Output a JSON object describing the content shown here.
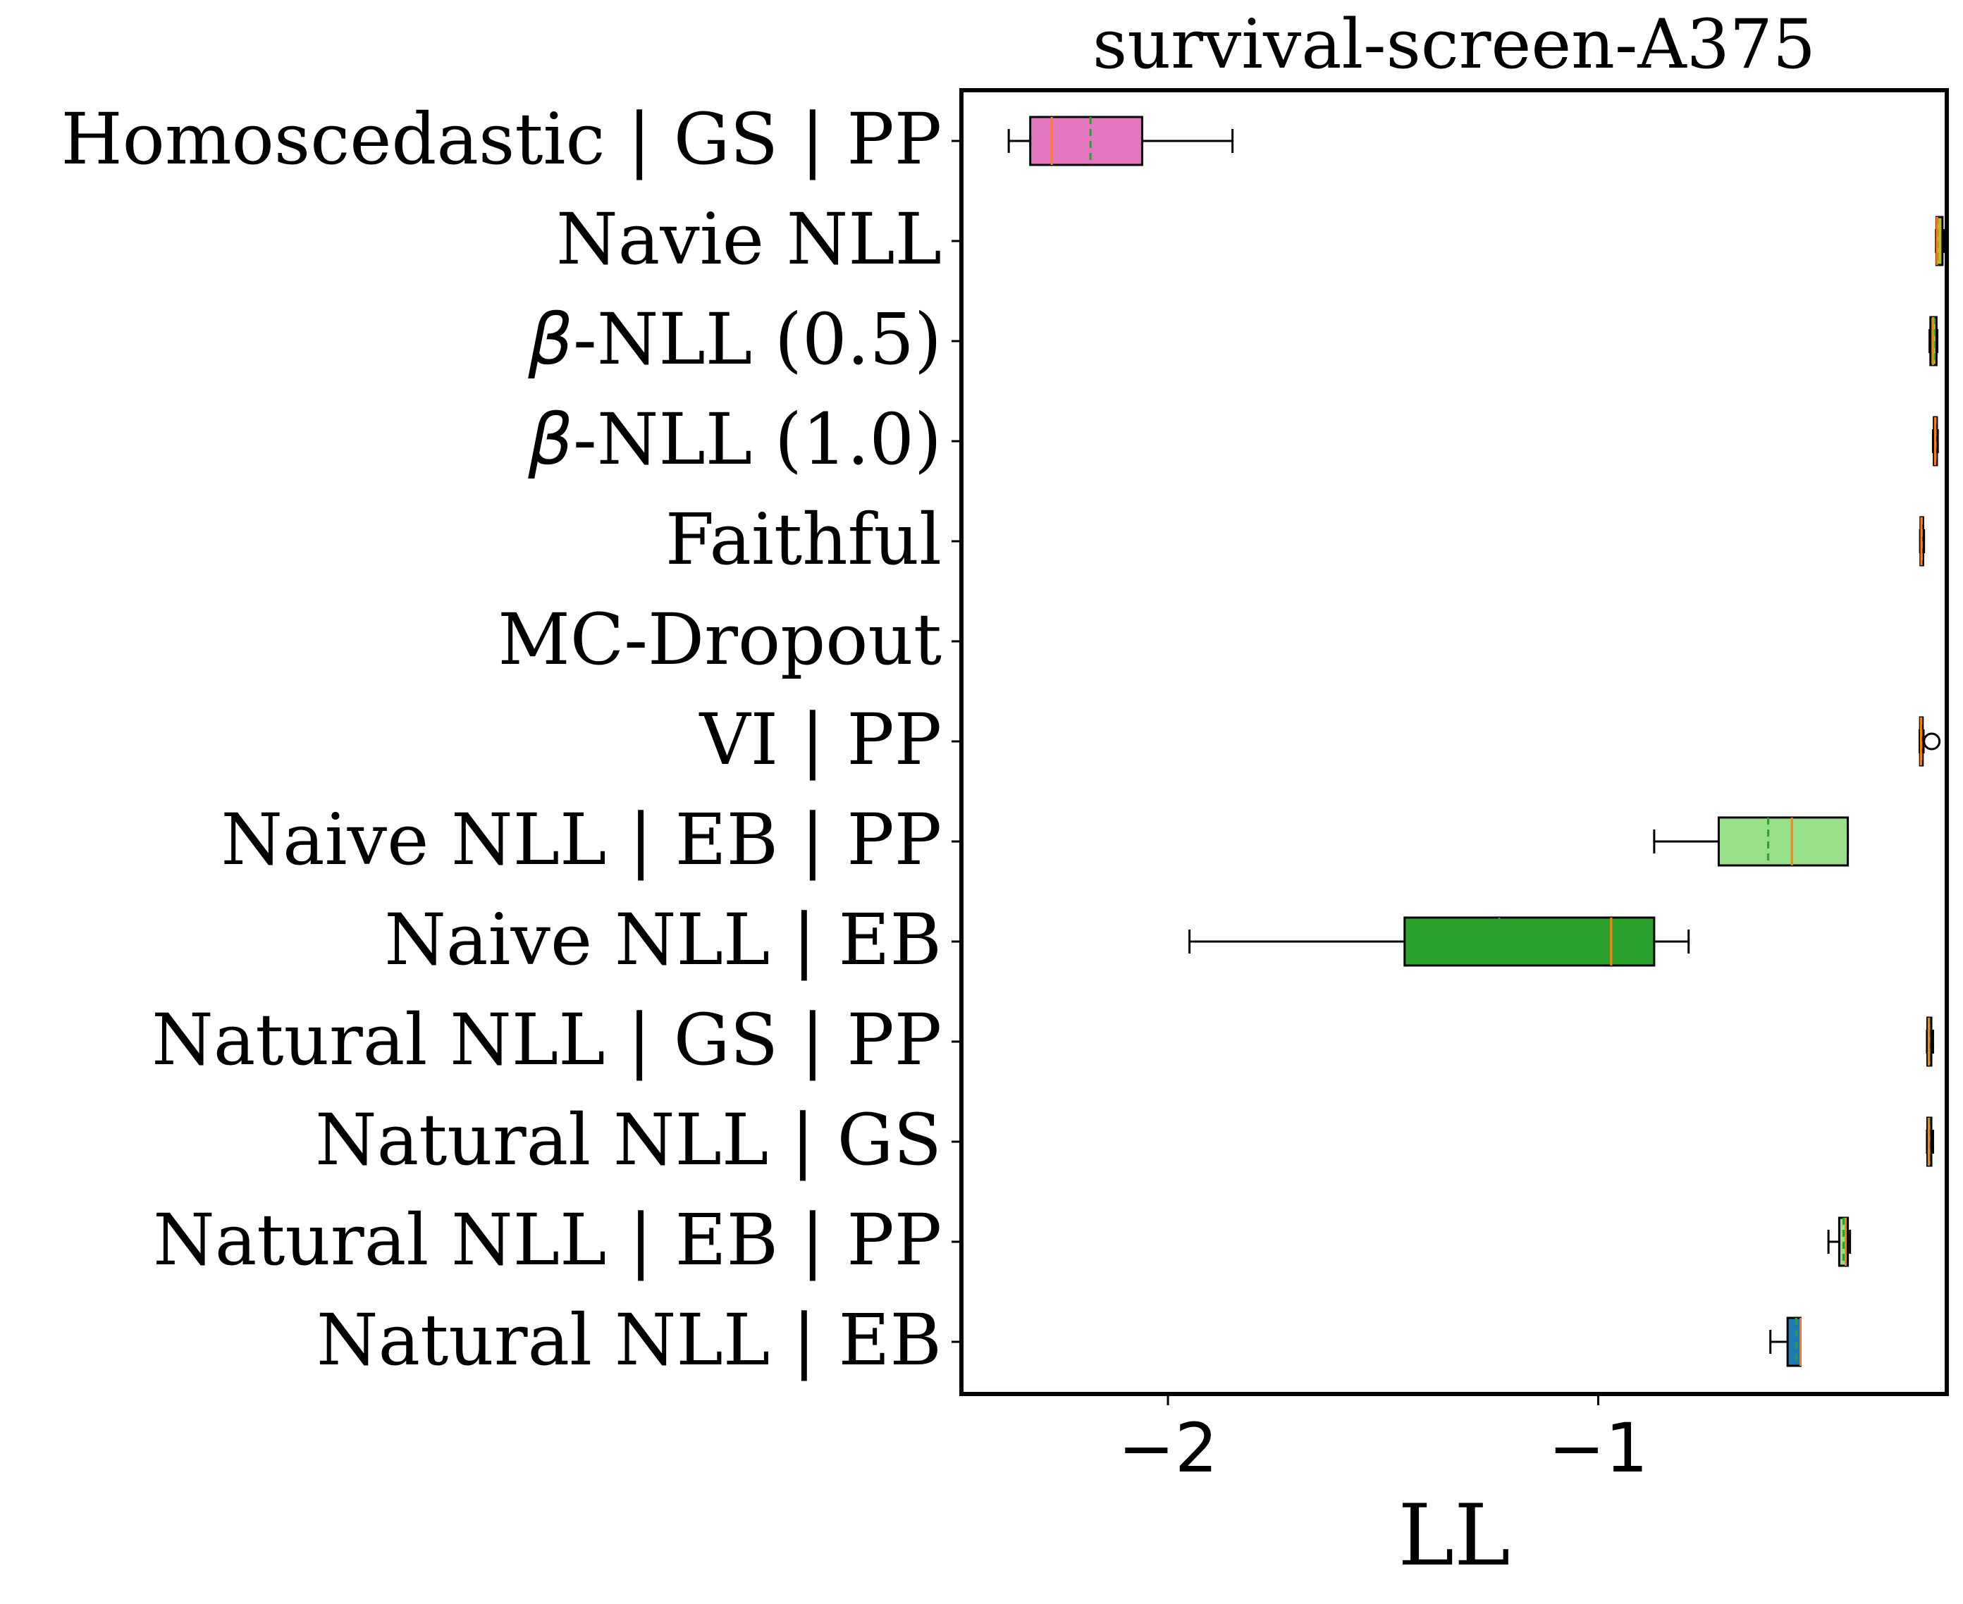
{
  "chart_data": {
    "type": "boxplot",
    "orientation": "horizontal",
    "title": "survival-screen-A375",
    "xlabel": "LL",
    "ylabel": "",
    "xlim": [
      -2.48,
      -0.19
    ],
    "x_ticks": [
      {
        "value": -2,
        "label": "−2"
      },
      {
        "value": -1,
        "label": "−1"
      }
    ],
    "categories": [
      {
        "prefix": "",
        "label": "Homoscedastic | GS | PP"
      },
      {
        "prefix": "",
        "label": "Navie NLL"
      },
      {
        "prefix": "β",
        "label": "-NLL (0.5)"
      },
      {
        "prefix": "β",
        "label": "-NLL (1.0)"
      },
      {
        "prefix": "",
        "label": "Faithful"
      },
      {
        "prefix": "",
        "label": "MC-Dropout"
      },
      {
        "prefix": "",
        "label": "VI | PP"
      },
      {
        "prefix": "",
        "label": "Naive NLL | EB | PP"
      },
      {
        "prefix": "",
        "label": "Naive NLL | EB "
      },
      {
        "prefix": "",
        "label": "Natural NLL | GS | PP"
      },
      {
        "prefix": "",
        "label": "Natural NLL | GS"
      },
      {
        "prefix": "",
        "label": "Natural NLL | EB | PP"
      },
      {
        "prefix": "",
        "label": "Natural NLL | EB "
      }
    ],
    "series": [
      {
        "whisker_low": -2.37,
        "q1": -2.32,
        "median": -2.27,
        "mean": -2.18,
        "q3": -2.06,
        "whisker_high": -1.85,
        "outliers": [],
        "color": "#e377c2"
      },
      {
        "whisker_low": -0.215,
        "q1": -0.214,
        "median": -0.213,
        "mean": -0.212,
        "q3": -0.2,
        "whisker_high": -0.197,
        "outliers": [],
        "color": "#bcbd22"
      },
      {
        "whisker_low": -0.23,
        "q1": -0.228,
        "median": -0.222,
        "mean": -0.22,
        "q3": -0.214,
        "whisker_high": -0.212,
        "outliers": [],
        "color": "#bcbd22"
      },
      {
        "whisker_low": -0.222,
        "q1": -0.22,
        "median": -0.217,
        "mean": -0.216,
        "q3": -0.213,
        "whisker_high": -0.211,
        "outliers": [],
        "color": "#bcbd22"
      },
      {
        "whisker_low": -0.252,
        "q1": -0.251,
        "median": -0.249,
        "mean": -0.248,
        "q3": -0.245,
        "whisker_high": -0.243,
        "outliers": [],
        "color": "#bcbd22"
      },
      null,
      {
        "whisker_low": -0.253,
        "q1": -0.252,
        "median": -0.25,
        "mean": -0.249,
        "q3": -0.246,
        "whisker_high": -0.244,
        "outliers": [
          -0.225
        ],
        "color": "#bcbd22"
      },
      {
        "whisker_low": -0.87,
        "q1": -0.72,
        "median": -0.55,
        "mean": -0.605,
        "q3": -0.42,
        "whisker_high": -0.42,
        "outliers": [],
        "color": "#98df8a"
      },
      {
        "whisker_low": -1.95,
        "q1": -1.45,
        "median": -0.97,
        "mean": -1.23,
        "q3": -0.87,
        "whisker_high": -0.79,
        "outliers": [],
        "color": "#2ca02c"
      },
      {
        "whisker_low": -0.236,
        "q1": -0.235,
        "median": -0.232,
        "mean": -0.231,
        "q3": -0.226,
        "whisker_high": -0.222,
        "outliers": [],
        "color": "#bcbd22"
      },
      {
        "whisker_low": -0.236,
        "q1": -0.235,
        "median": -0.232,
        "mean": -0.231,
        "q3": -0.226,
        "whisker_high": -0.222,
        "outliers": [],
        "color": "#bcbd22"
      },
      {
        "whisker_low": -0.465,
        "q1": -0.44,
        "median": -0.425,
        "mean": -0.43,
        "q3": -0.42,
        "whisker_high": -0.415,
        "outliers": [],
        "color": "#98df8a"
      },
      {
        "whisker_low": -0.6,
        "q1": -0.56,
        "median": -0.53,
        "mean": -0.54,
        "q3": -0.53,
        "whisker_high": -0.53,
        "outliers": [],
        "color": "#1f77b4"
      }
    ],
    "colors": {
      "median_line": "#ff7f0e",
      "mean_line": "#2ca02c",
      "frame": "#000000"
    },
    "grid": false,
    "legend": "none"
  }
}
